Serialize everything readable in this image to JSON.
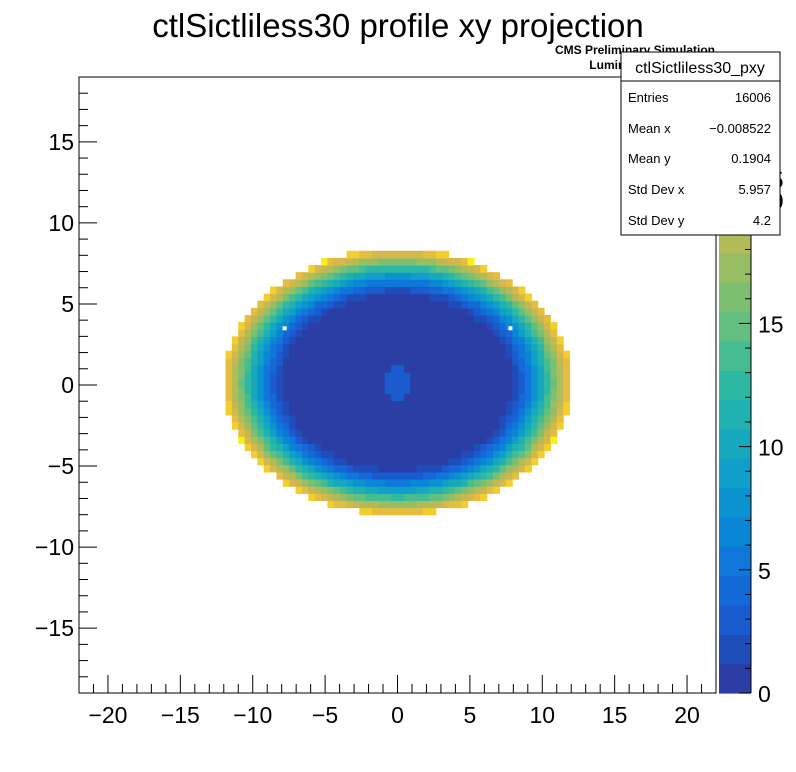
{
  "chart_data": {
    "type": "heatmap",
    "title": "ctlSictliless30 profile xy projection",
    "xlabel": "",
    "ylabel": "",
    "xlim": [
      -22,
      22
    ],
    "ylim": [
      -19,
      19
    ],
    "x_ticks": [
      -20,
      -15,
      -10,
      -5,
      0,
      5,
      10,
      15,
      20
    ],
    "x_tick_labels": [
      "−20",
      "−15",
      "−10",
      "−5",
      "0",
      "5",
      "10",
      "15",
      "20"
    ],
    "y_ticks": [
      -15,
      -10,
      -5,
      0,
      5,
      10,
      15
    ],
    "y_tick_labels": [
      "−15",
      "−10",
      "−5",
      "0",
      "5",
      "10",
      "15"
    ],
    "bin_size": 0.44,
    "z_range": [
      0,
      25
    ],
    "z_ticks": [
      0,
      5,
      10,
      15,
      20
    ],
    "z_tick_labels": [
      "0",
      "5",
      "10",
      "15",
      "20"
    ],
    "z_top_partial_label": "25",
    "palette": [
      "#2b3ea6",
      "#1e4dba",
      "#1a5ccf",
      "#1468d8",
      "#0f77da",
      "#0a86d6",
      "#0b93d0",
      "#0f9fc8",
      "#16a8bd",
      "#20b1b1",
      "#2db8a3",
      "#45bc92",
      "#62bf80",
      "#7dbf71",
      "#97be63",
      "#b1bb58",
      "#c6b752",
      "#d5b84b",
      "#e6be3f",
      "#f4ce2c",
      "#faf017"
    ],
    "model": {
      "shape": "ellipse",
      "center_x": 0.0,
      "center_y": 0.2,
      "semi_axis_x": 12.0,
      "semi_axis_y": 8.2,
      "floor_radius_fraction": 0.65,
      "center_spot_radius": 1.0,
      "center_spot_value": 3,
      "floor_value": 1,
      "edge_value": 24
    },
    "hot_pixels": [
      {
        "x": -7.8,
        "y": 3.5
      },
      {
        "x": 7.8,
        "y": 3.5
      }
    ],
    "stats_box": {
      "name": "ctlSictliless30_pxy",
      "rows": [
        {
          "label": "Entries",
          "value": "16006"
        },
        {
          "label": "Mean x",
          "value": "−0.008522"
        },
        {
          "label": "Mean y",
          "value": "0.1904"
        },
        {
          "label": "Std Dev x",
          "value": "5.957"
        },
        {
          "label": "Std Dev y",
          "value": "4.2"
        }
      ]
    },
    "cms_label": "CMS Preliminary Simulation",
    "lumi_label": "Luminosity = 1.00 fb",
    "lumi_superscript": "-1"
  }
}
